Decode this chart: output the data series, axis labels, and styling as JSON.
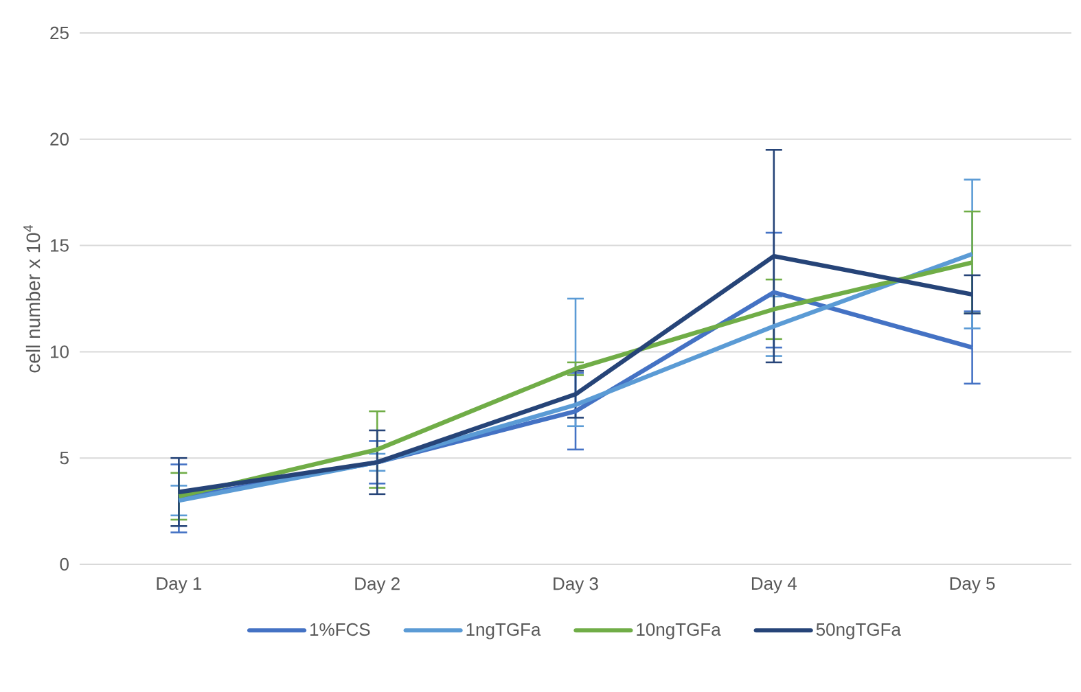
{
  "chart_data": {
    "type": "line",
    "ylabel": "cell number x 10$^{4}$",
    "categories": [
      "Day 1",
      "Day 2",
      "Day 3",
      "Day 4",
      "Day 5"
    ],
    "series": [
      {
        "name": "1%FCS",
        "color": "#4472c4",
        "values": [
          3.1,
          4.8,
          7.2,
          12.8,
          10.2
        ],
        "errors": [
          1.6,
          1.0,
          1.8,
          [
            10.2,
            15.6
          ],
          1.7
        ]
      },
      {
        "name": "1ngTGFa",
        "color": "#5b9bd5",
        "values": [
          3.0,
          4.8,
          7.5,
          11.2,
          14.6
        ],
        "errors": [
          0.7,
          0.4,
          [
            6.5,
            12.5
          ],
          1.4,
          3.5
        ]
      },
      {
        "name": "10ngTGFa",
        "color": "#70ad47",
        "values": [
          3.2,
          5.4,
          9.2,
          12.0,
          14.2
        ],
        "errors": [
          1.1,
          1.8,
          0.3,
          1.4,
          2.4
        ]
      },
      {
        "name": "50ngTGFa",
        "color": "#264478",
        "values": [
          3.4,
          4.8,
          8.0,
          14.5,
          12.7
        ],
        "errors": [
          1.6,
          1.5,
          1.1,
          5.0,
          0.9
        ]
      }
    ],
    "ylim": [
      0,
      25
    ],
    "yticks": [
      0,
      5,
      10,
      15,
      20,
      25
    ],
    "grid": "y",
    "legend": "bottom",
    "marker": "none",
    "line_style": "solid"
  }
}
